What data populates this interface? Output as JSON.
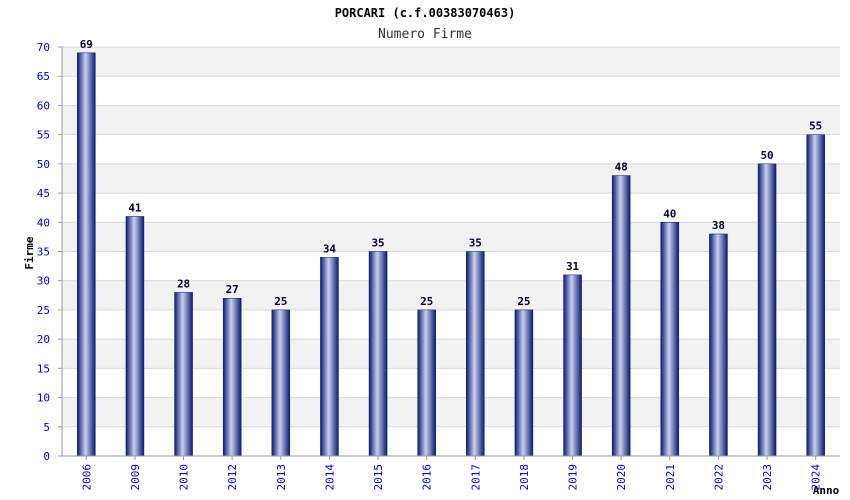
{
  "chart_data": {
    "type": "bar",
    "title": "PORCARI (c.f.00383070463)",
    "subtitle": "Numero Firme",
    "xlabel": "Anno",
    "ylabel": "Firme",
    "ylim": [
      0,
      70
    ],
    "ytick_step": 5,
    "grid": true,
    "categories": [
      "2006",
      "2009",
      "2010",
      "2012",
      "2013",
      "2014",
      "2015",
      "2016",
      "2017",
      "2018",
      "2019",
      "2020",
      "2021",
      "2022",
      "2023",
      "2024"
    ],
    "values": [
      69,
      41,
      28,
      27,
      25,
      34,
      35,
      25,
      35,
      25,
      31,
      48,
      40,
      38,
      50,
      55
    ],
    "colors": {
      "bar_dark": "#0a1a6e",
      "bar_light": "#c8d0f0",
      "tick_label": "#0000cc",
      "value_label": "#000033",
      "band": "#f2f2f2",
      "grid": "#d8d8d8",
      "axis": "#999999"
    }
  }
}
